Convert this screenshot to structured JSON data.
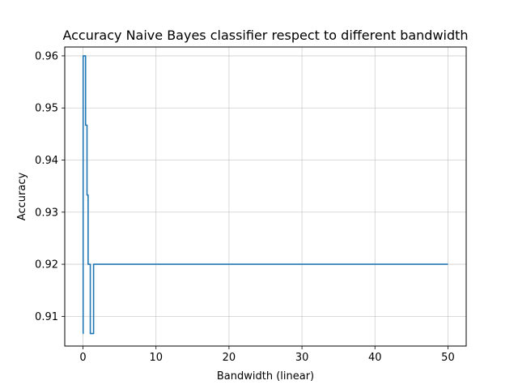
{
  "chart_data": {
    "type": "line",
    "title": "Accuracy Naive Bayes classifier respect to different bandwidth",
    "xlabel": "Bandwidth (linear)",
    "ylabel": "Accuracy",
    "xlim": [
      -2.5,
      52.5
    ],
    "ylim": [
      0.9043,
      0.9617
    ],
    "xticks": [
      0,
      10,
      20,
      30,
      40,
      50
    ],
    "yticks": [
      0.91,
      0.92,
      0.93,
      0.94,
      0.95,
      0.96
    ],
    "ytick_labels": [
      "0.91",
      "0.92",
      "0.93",
      "0.94",
      "0.95",
      "0.96"
    ],
    "grid": true,
    "legend": null,
    "series": [
      {
        "color": "#1f77b4",
        "step": "post",
        "x": [
          0.01,
          0.02,
          0.1,
          0.35,
          0.55,
          0.7,
          1.0,
          1.45,
          50.0
        ],
        "y": [
          0.9067,
          0.96,
          0.96,
          0.9467,
          0.9333,
          0.92,
          0.9067,
          0.92,
          0.92
        ]
      }
    ]
  }
}
